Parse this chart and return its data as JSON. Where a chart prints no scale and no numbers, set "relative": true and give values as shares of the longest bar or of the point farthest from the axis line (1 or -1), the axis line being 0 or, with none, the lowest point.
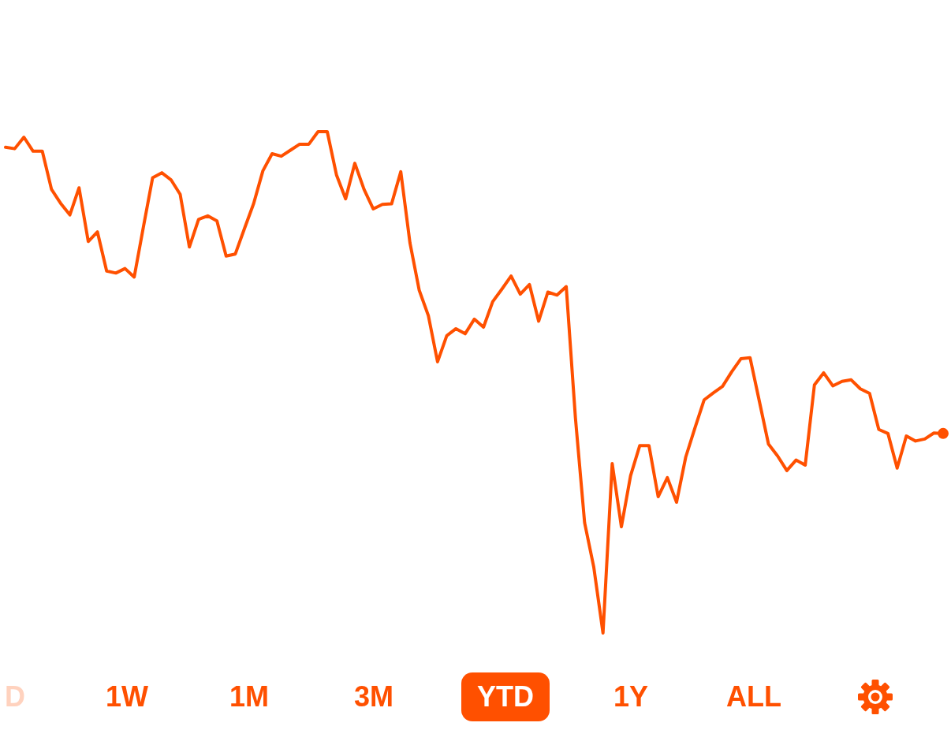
{
  "chart_data": {
    "type": "line",
    "relative": true,
    "categories": [
      null,
      null,
      null,
      null,
      null,
      null,
      null,
      null,
      null,
      null,
      null,
      null,
      null,
      null,
      null,
      null,
      null,
      null,
      null,
      null,
      null,
      null,
      null,
      null,
      null,
      null,
      null,
      null,
      null,
      null,
      null,
      null,
      null,
      null,
      null,
      null,
      null,
      null,
      null,
      null,
      null,
      null,
      null,
      null,
      null,
      null,
      null,
      null,
      null,
      null,
      null,
      null,
      null,
      null,
      null,
      null,
      null,
      null,
      null,
      null,
      null,
      null,
      null,
      null,
      null,
      null,
      null,
      null,
      null,
      null,
      null,
      null,
      null,
      null,
      null,
      null,
      null,
      null,
      null,
      null,
      null,
      null,
      null,
      null,
      null,
      null,
      null,
      null,
      null,
      null,
      null,
      null,
      null,
      null,
      null,
      null,
      null,
      null,
      null,
      null,
      null,
      null,
      null
    ],
    "series": [
      {
        "color": "#ff5000",
        "values": [
          0.969,
          0.966,
          0.989,
          0.961,
          0.961,
          0.885,
          0.857,
          0.834,
          0.888,
          0.781,
          0.8,
          0.722,
          0.718,
          0.727,
          0.71,
          0.81,
          0.908,
          0.918,
          0.904,
          0.875,
          0.77,
          0.825,
          0.832,
          0.822,
          0.752,
          0.756,
          0.807,
          0.857,
          0.922,
          0.956,
          0.951,
          0.963,
          0.975,
          0.975,
          1,
          1,
          0.914,
          0.866,
          0.937,
          0.885,
          0.846,
          0.855,
          0.856,
          0.92,
          0.778,
          0.684,
          0.633,
          0.541,
          0.593,
          0.607,
          0.597,
          0.626,
          0.61,
          0.661,
          0.686,
          0.712,
          0.676,
          0.695,
          0.622,
          0.68,
          0.674,
          0.691,
          0.429,
          0.22,
          0.131,
          0,
          0.338,
          0.212,
          0.314,
          0.374,
          0.374,
          0.272,
          0.31,
          0.261,
          0.351,
          0.409,
          0.465,
          0.479,
          0.492,
          0.521,
          0.547,
          0.549,
          0.463,
          0.377,
          0.353,
          0.324,
          0.345,
          0.335,
          0.495,
          0.519,
          0.493,
          0.502,
          0.505,
          0.487,
          0.478,
          0.406,
          0.398,
          0.329,
          0.393,
          0.383,
          0.387,
          0.399,
          0.398
        ]
      },
      {
        "color": "#ff5000",
        "marker": "circle",
        "values": [
          null,
          null,
          null,
          null,
          null,
          null,
          null,
          null,
          null,
          null,
          null,
          null,
          null,
          null,
          null,
          null,
          null,
          null,
          null,
          null,
          null,
          null,
          null,
          null,
          null,
          null,
          null,
          null,
          null,
          null,
          null,
          null,
          null,
          null,
          null,
          null,
          null,
          null,
          null,
          null,
          null,
          null,
          null,
          null,
          null,
          null,
          null,
          null,
          null,
          null,
          null,
          null,
          null,
          null,
          null,
          null,
          null,
          null,
          null,
          null,
          null,
          null,
          null,
          null,
          null,
          null,
          null,
          null,
          null,
          null,
          null,
          null,
          null,
          null,
          null,
          null,
          null,
          null,
          null,
          null,
          null,
          null,
          null,
          null,
          null,
          null,
          null,
          null,
          null,
          null,
          null,
          null,
          null,
          null,
          null,
          null,
          null,
          null,
          null,
          null,
          null,
          null,
          0.398
        ]
      }
    ],
    "annotations": [
      "D",
      "1W",
      "1M",
      "3M",
      "YTD",
      "1Y",
      "ALL"
    ]
  }
}
